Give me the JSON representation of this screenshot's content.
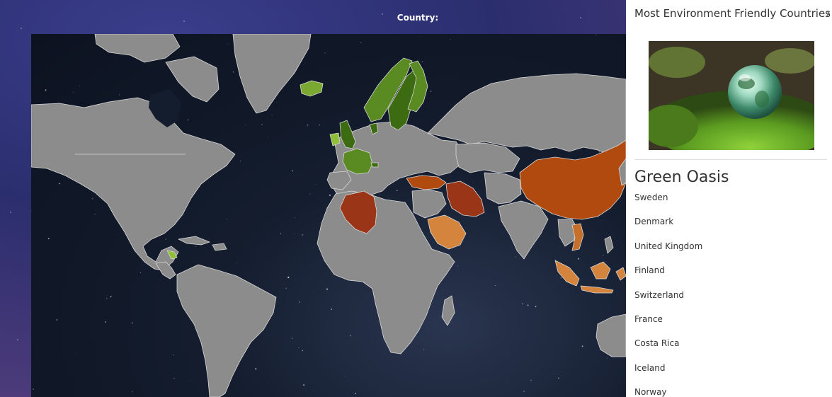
{
  "header": {
    "country_label": "Country:"
  },
  "sidebar": {
    "title": "Most Environment Friendly Countries",
    "close_glyph": "›",
    "section_title": "Green Oasis",
    "countries": [
      "Sweden",
      "Denmark",
      "United Kingdom",
      "Finland",
      "Switzerland",
      "France",
      "Costa Rica",
      "Iceland",
      "Norway"
    ]
  },
  "image": {
    "icon": "globe-on-moss-icon"
  },
  "map": {
    "colors": {
      "default_land": "#8c8c8c",
      "border": "#d8d8d8",
      "greenest": "#3d6b12",
      "green": "#5a8a22",
      "light_green": "#7aa830",
      "lime": "#8fbf35",
      "dark_orange": "#b04a0e",
      "red_brown": "#9a3518",
      "light_orange": "#d4843c",
      "orange": "#c7702c"
    },
    "highlighted": [
      {
        "name": "Sweden",
        "color": "#3d6b12"
      },
      {
        "name": "Denmark",
        "color": "#3d6b12"
      },
      {
        "name": "United Kingdom",
        "color": "#3d6b12"
      },
      {
        "name": "Finland",
        "color": "#5a8a22"
      },
      {
        "name": "Switzerland",
        "color": "#3d6b12"
      },
      {
        "name": "France",
        "color": "#5a8a22"
      },
      {
        "name": "Costa Rica",
        "color": "#8fbf35"
      },
      {
        "name": "Iceland",
        "color": "#7aa830"
      },
      {
        "name": "Norway",
        "color": "#5a8a22"
      },
      {
        "name": "Ireland",
        "color": "#8fbf35"
      },
      {
        "name": "China",
        "color": "#b04a0e"
      },
      {
        "name": "Turkey",
        "color": "#b04a0e"
      },
      {
        "name": "Iran",
        "color": "#9a3518"
      },
      {
        "name": "Algeria",
        "color": "#9a3518"
      },
      {
        "name": "Saudi Arabia",
        "color": "#d4843c"
      },
      {
        "name": "Indonesia",
        "color": "#d4843c"
      },
      {
        "name": "Vietnam",
        "color": "#c7702c"
      }
    ]
  }
}
